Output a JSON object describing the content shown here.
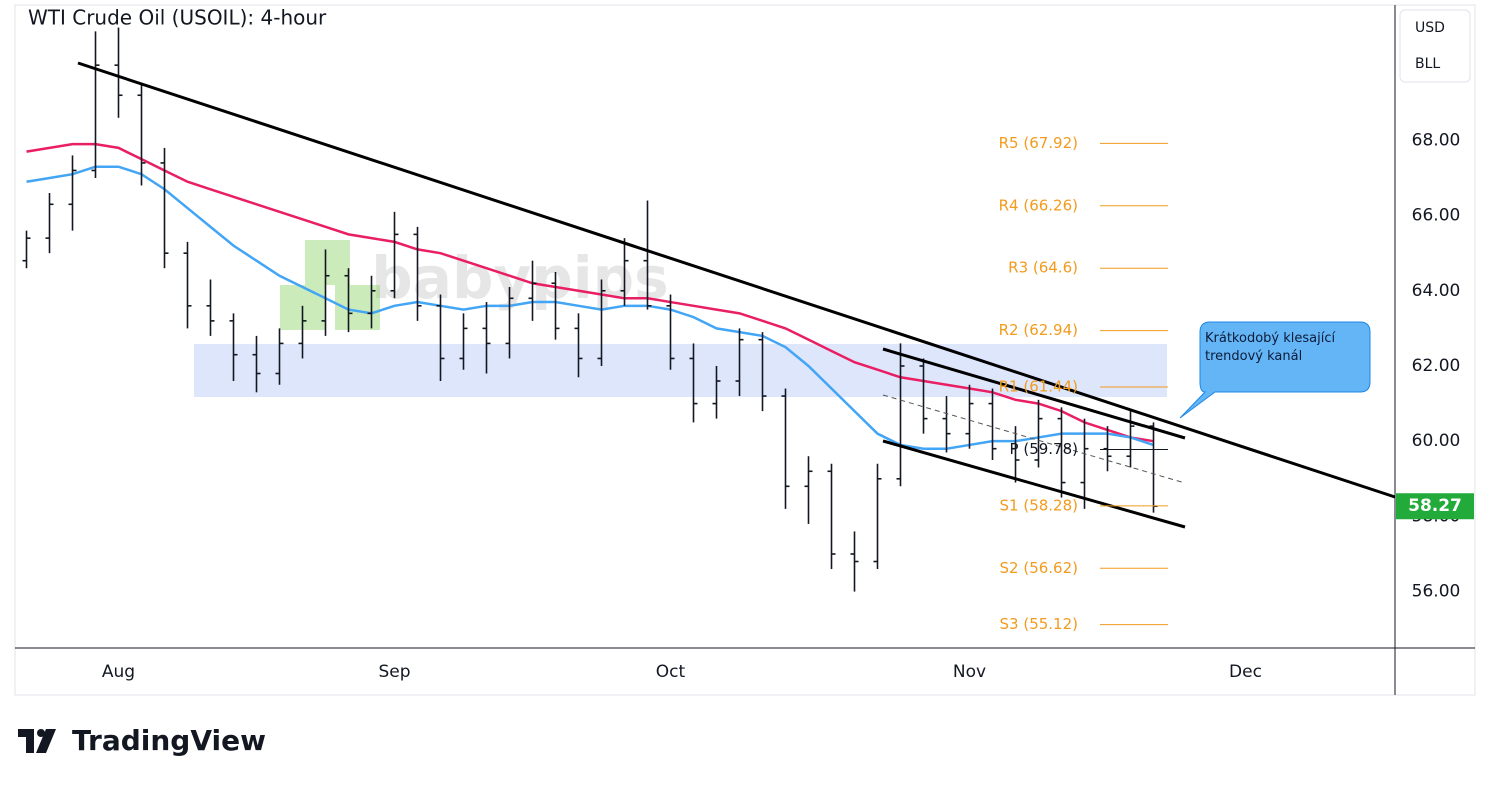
{
  "chart_data": {
    "type": "ohlc",
    "title": "WTI Crude Oil (USOIL): 4-hour",
    "currency": "USD",
    "unit": "BLL",
    "watermark": "babypips",
    "brand": "TradingView",
    "annotation": "Krátkodobý klesající trendový kanál",
    "categories": [
      null,
      null,
      null,
      null,
      "Aug",
      null,
      null,
      null,
      null,
      null,
      null,
      null,
      null,
      null,
      null,
      null,
      "Sep",
      null,
      null,
      null,
      null,
      null,
      null,
      null,
      null,
      null,
      null,
      null,
      "Oct",
      null,
      null,
      null,
      null,
      null,
      null,
      null,
      null,
      null,
      null,
      null,
      null,
      "Nov",
      null,
      null,
      null,
      null,
      null,
      null,
      null,
      null,
      null,
      null,
      null,
      "Dec",
      null,
      null,
      null,
      null,
      null,
      null
    ],
    "open": [
      64.8,
      65.4,
      66.3,
      67.2,
      70.0,
      69.2,
      67.4,
      65.0,
      63.6,
      63.2,
      62.3,
      61.8,
      62.6,
      63.2,
      64.4,
      63.4,
      64.0,
      65.5,
      63.6,
      62.2,
      63.0,
      62.6,
      63.8,
      64.2,
      63.0,
      62.2,
      64.0,
      64.8,
      63.6,
      62.2,
      61.0,
      61.6,
      62.7,
      61.2,
      58.8,
      59.2,
      57.0,
      56.8,
      59.0,
      62.0,
      60.6,
      60.2,
      61.0,
      59.8,
      59.5,
      60.6,
      58.9,
      59.8,
      59.6,
      60.4,
      null,
      null,
      null,
      null,
      null,
      null,
      null,
      null,
      null,
      null
    ],
    "high": [
      65.6,
      66.6,
      67.6,
      70.9,
      71.0,
      69.5,
      67.8,
      65.3,
      64.3,
      63.4,
      62.8,
      63.0,
      63.6,
      65.1,
      64.6,
      64.4,
      66.1,
      65.7,
      63.9,
      63.4,
      63.7,
      64.1,
      64.8,
      64.5,
      63.4,
      64.3,
      65.4,
      66.4,
      63.9,
      62.6,
      62.0,
      63.0,
      62.9,
      61.4,
      59.6,
      59.4,
      57.6,
      59.4,
      62.6,
      62.2,
      61.2,
      61.5,
      61.4,
      60.4,
      61.1,
      60.9,
      60.6,
      60.4,
      60.8,
      60.5,
      null,
      null,
      null,
      null,
      null,
      null,
      null,
      null,
      null,
      null
    ],
    "low": [
      64.6,
      65.0,
      65.6,
      67.0,
      68.6,
      66.8,
      64.6,
      63.0,
      62.8,
      61.6,
      61.3,
      61.5,
      62.2,
      62.8,
      62.9,
      63.0,
      63.8,
      63.2,
      61.6,
      61.9,
      61.8,
      62.2,
      63.2,
      62.7,
      61.7,
      62.0,
      63.6,
      63.5,
      61.9,
      60.5,
      60.6,
      61.2,
      60.8,
      58.2,
      57.8,
      56.6,
      56.0,
      56.6,
      58.8,
      60.2,
      59.7,
      59.8,
      59.5,
      58.9,
      59.3,
      58.5,
      58.2,
      59.2,
      59.3,
      58.1,
      null,
      null,
      null,
      null,
      null,
      null,
      null,
      null,
      null,
      null
    ],
    "close": [
      65.4,
      66.3,
      67.2,
      70.0,
      69.2,
      67.4,
      65.0,
      63.6,
      63.2,
      62.3,
      61.8,
      62.6,
      63.2,
      64.4,
      63.4,
      64.0,
      65.5,
      63.6,
      62.2,
      63.0,
      62.6,
      63.8,
      64.2,
      63.0,
      62.2,
      64.0,
      64.8,
      63.6,
      62.2,
      61.0,
      61.6,
      62.7,
      61.2,
      58.8,
      59.2,
      57.0,
      56.8,
      59.0,
      62.0,
      60.6,
      60.2,
      61.0,
      59.8,
      59.5,
      60.6,
      58.9,
      59.8,
      59.6,
      60.4,
      58.27,
      null,
      null,
      null,
      null,
      null,
      null,
      null,
      null,
      null,
      null
    ],
    "color": "#131722",
    "moving_averages": [
      {
        "color": "#e91e63",
        "values": [
          67.7,
          67.8,
          67.9,
          67.9,
          67.8,
          67.5,
          67.2,
          66.9,
          66.7,
          66.5,
          66.3,
          66.1,
          65.9,
          65.7,
          65.5,
          65.4,
          65.3,
          65.1,
          65.0,
          64.8,
          64.6,
          64.4,
          64.2,
          64.1,
          64.0,
          63.9,
          63.8,
          63.8,
          63.7,
          63.6,
          63.5,
          63.4,
          63.2,
          63.0,
          62.7,
          62.4,
          62.1,
          61.9,
          61.7,
          61.6,
          61.5,
          61.4,
          61.3,
          61.1,
          61.0,
          60.8,
          60.5,
          60.3,
          60.1,
          60.0,
          null,
          null,
          null,
          null,
          null,
          null,
          null,
          null,
          null,
          null
        ]
      },
      {
        "color": "#42a5f5",
        "values": [
          66.9,
          67.0,
          67.1,
          67.3,
          67.3,
          67.1,
          66.7,
          66.2,
          65.7,
          65.2,
          64.8,
          64.4,
          64.1,
          63.8,
          63.5,
          63.4,
          63.6,
          63.7,
          63.6,
          63.5,
          63.6,
          63.6,
          63.7,
          63.7,
          63.6,
          63.5,
          63.6,
          63.6,
          63.5,
          63.3,
          63.0,
          62.9,
          62.8,
          62.5,
          62.0,
          61.4,
          60.8,
          60.2,
          59.9,
          59.8,
          59.8,
          59.9,
          60.0,
          60.0,
          60.1,
          60.2,
          60.2,
          60.2,
          60.1,
          59.9,
          null,
          null,
          null,
          null,
          null,
          null,
          null,
          null,
          null,
          null
        ]
      }
    ],
    "pivots": [
      {
        "label": "R5 (67.92)",
        "value": 67.92,
        "color": "#f29b1d"
      },
      {
        "label": "R4 (66.26)",
        "value": 66.26,
        "color": "#f29b1d"
      },
      {
        "label": "R3 (64.6)",
        "value": 64.6,
        "color": "#f29b1d"
      },
      {
        "label": "R2 (62.94)",
        "value": 62.94,
        "color": "#f29b1d"
      },
      {
        "label": "R1 (61.44)",
        "value": 61.44,
        "color": "#f29b1d"
      },
      {
        "label": "P (59.78)",
        "value": 59.78,
        "color": "#131722"
      },
      {
        "label": "S1 (58.28)",
        "value": 58.28,
        "color": "#f29b1d"
      },
      {
        "label": "S2 (56.62)",
        "value": 56.62,
        "color": "#f29b1d"
      },
      {
        "label": "S3 (55.12)",
        "value": 55.12,
        "color": "#f29b1d"
      }
    ],
    "last_price": 58.27,
    "last_price_color": "#22ab3a",
    "ylim": [
      54.5,
      71.6
    ],
    "yticks": [
      {
        "value": 56,
        "label": "56.00"
      },
      {
        "value": 58,
        "label": "58.00"
      },
      {
        "value": 60,
        "label": "60.00"
      },
      {
        "value": 62,
        "label": "62.00"
      },
      {
        "value": 64,
        "label": "64.00"
      },
      {
        "value": 66,
        "label": "66.00"
      },
      {
        "value": 68,
        "label": "68.00"
      }
    ]
  }
}
